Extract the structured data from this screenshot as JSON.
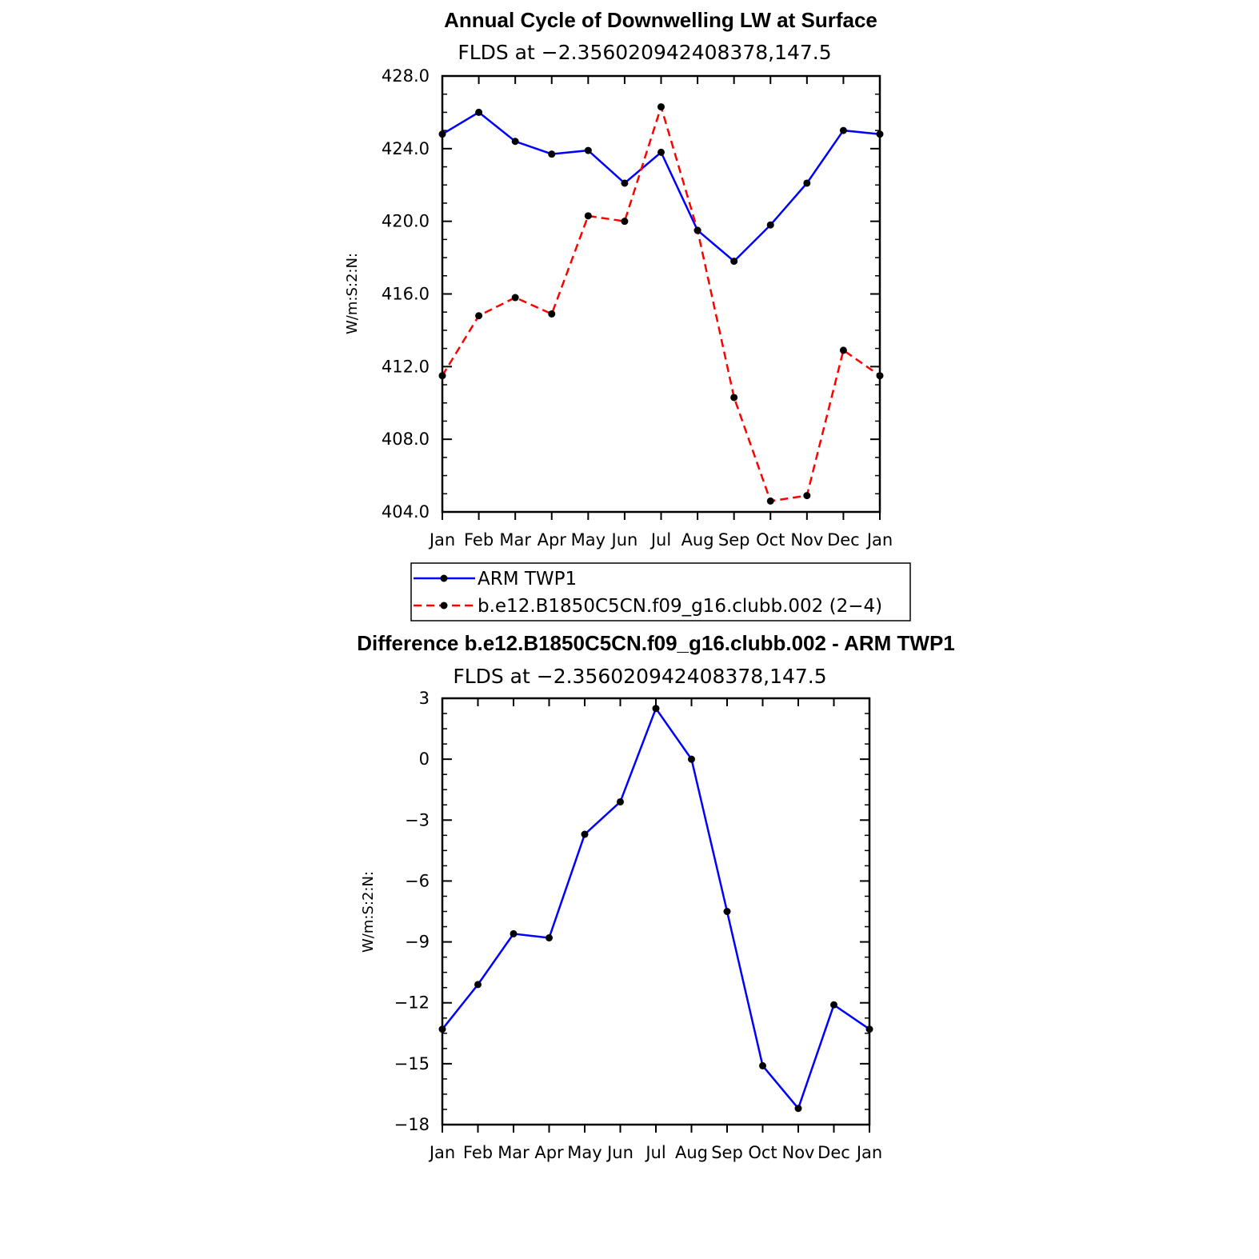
{
  "chart_data": [
    {
      "type": "line",
      "title": "Annual Cycle of Downwelling LW at Surface",
      "subtitle": "FLDS at −2.356020942408378,147.5",
      "ylabel": "W/m:S:2:N:",
      "categories": [
        "Jan",
        "Feb",
        "Mar",
        "Apr",
        "May",
        "Jun",
        "Jul",
        "Aug",
        "Sep",
        "Oct",
        "Nov",
        "Dec",
        "Jan"
      ],
      "ylim": [
        404,
        428
      ],
      "yticks": [
        "404.0",
        "408.0",
        "412.0",
        "416.0",
        "420.0",
        "424.0",
        "428.0"
      ],
      "ytick_values": [
        404,
        408,
        412,
        416,
        420,
        424,
        428
      ],
      "series": [
        {
          "name": "ARM TWP1",
          "color": "#0000ff",
          "dash": "solid",
          "values": [
            424.8,
            426.0,
            424.4,
            423.7,
            423.9,
            422.1,
            423.8,
            419.5,
            417.8,
            419.8,
            422.1,
            425.0,
            424.8
          ]
        },
        {
          "name": "b.e12.B1850C5CN.f09_g16.clubb.002 (2−4)",
          "color": "#ff0000",
          "dash": "dashed",
          "values": [
            411.5,
            414.8,
            415.8,
            414.9,
            420.3,
            420.0,
            426.3,
            419.5,
            410.3,
            404.6,
            404.9,
            412.9,
            411.5
          ]
        }
      ],
      "legend": "below",
      "grid": false
    },
    {
      "type": "line",
      "title": "Difference b.e12.B1850C5CN.f09_g16.clubb.002 - ARM TWP1",
      "subtitle": "FLDS at −2.356020942408378,147.5",
      "ylabel": "W/m:S:2:N:",
      "categories": [
        "Jan",
        "Feb",
        "Mar",
        "Apr",
        "May",
        "Jun",
        "Jul",
        "Aug",
        "Sep",
        "Oct",
        "Nov",
        "Dec",
        "Jan"
      ],
      "ylim": [
        -18,
        3
      ],
      "yticks": [
        "−18",
        "−15",
        "−12",
        "−9",
        "−6",
        "−3",
        "0",
        "3"
      ],
      "ytick_values": [
        -18,
        -15,
        -12,
        -9,
        -6,
        -3,
        0,
        3
      ],
      "series": [
        {
          "color": "#0000ff",
          "dash": "solid",
          "values": [
            -13.3,
            -11.1,
            -8.6,
            -8.8,
            -3.7,
            -2.1,
            2.5,
            0.0,
            -7.5,
            -15.1,
            -17.2,
            -12.1,
            -13.3
          ]
        }
      ],
      "grid": false
    }
  ]
}
